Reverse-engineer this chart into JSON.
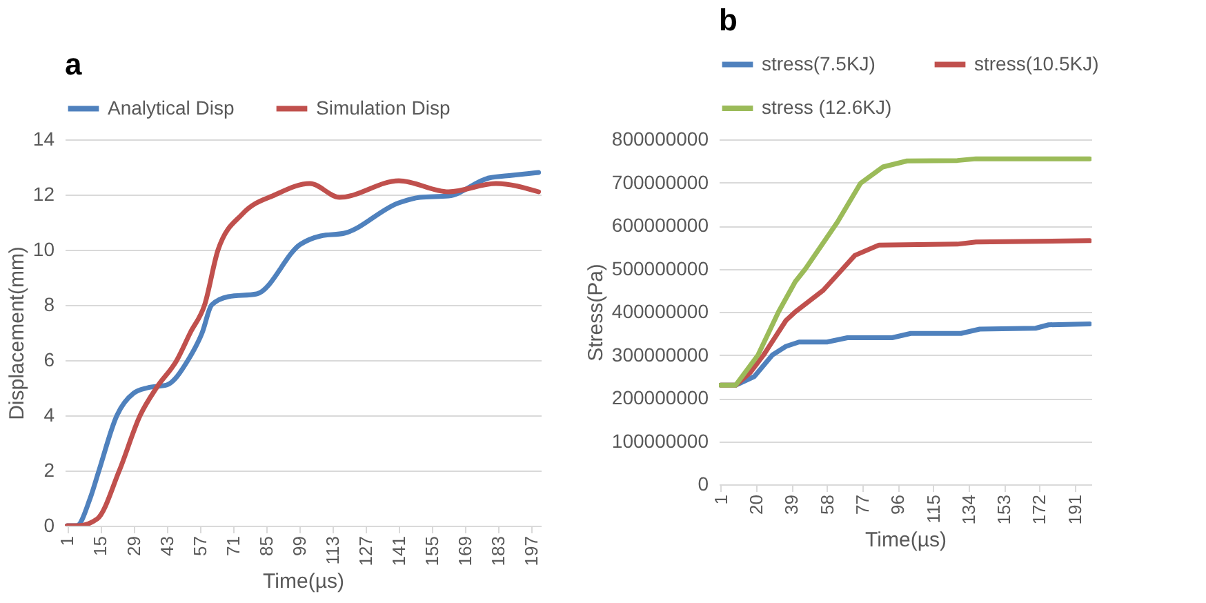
{
  "chart_data": [
    {
      "type": "line",
      "title": "a",
      "xlabel": "Time(µs)",
      "ylabel": "Displacement(mm)",
      "xlim": [
        0,
        201
      ],
      "xticks": [
        1,
        15,
        29,
        43,
        57,
        71,
        85,
        99,
        113,
        127,
        141,
        155,
        169,
        183,
        197
      ],
      "ylim": [
        0,
        14
      ],
      "yticks": [
        0,
        2,
        4,
        6,
        8,
        10,
        12,
        14
      ],
      "grid": "y",
      "legend": "top",
      "series": [
        {
          "name": "Analytical Disp",
          "color": "#4f81bd",
          "x": [
            1,
            5,
            10.7,
            14.4,
            22,
            29,
            35,
            43,
            52,
            58,
            62,
            69,
            81,
            99.5,
            108,
            118,
            141,
            150,
            162,
            179,
            189,
            200
          ],
          "values": [
            0,
            0,
            1,
            2,
            4,
            4.8,
            5,
            5.1,
            6,
            7,
            8,
            8.3,
            8.4,
            10.2,
            10.5,
            10.6,
            11.7,
            11.9,
            11.95,
            12.6,
            12.7,
            12.8
          ]
        },
        {
          "name": "Simulation Disp",
          "color": "#c0504d",
          "x": [
            1,
            5.6,
            13.7,
            23,
            31.8,
            38.7,
            47.3,
            53,
            59,
            64.7,
            75,
            89,
            103.5,
            116,
            141,
            162,
            182,
            200
          ],
          "values": [
            0,
            0,
            0.25,
            2,
            4,
            5,
            6,
            7,
            8,
            10,
            11.3,
            12,
            12.4,
            11.9,
            12.5,
            12.1,
            12.4,
            12.1
          ]
        }
      ]
    },
    {
      "type": "line",
      "title": "b",
      "xlabel": "Time(µs)",
      "ylabel": "Stress(Pa)",
      "xlim": [
        0,
        200
      ],
      "xticks": [
        1,
        20,
        39,
        58,
        77,
        96,
        115,
        134,
        153,
        172,
        191
      ],
      "ylim": [
        0,
        800000000
      ],
      "yticks": [
        0,
        100000000,
        200000000,
        300000000,
        400000000,
        500000000,
        600000000,
        700000000,
        800000000
      ],
      "grid": "y",
      "legend": "top",
      "series": [
        {
          "name": "stress(7.5KJ)",
          "color": "#4f81bd",
          "x": [
            1,
            9,
            19,
            28.7,
            36,
            43,
            58,
            69,
            93,
            103,
            130,
            140,
            170,
            177,
            199
          ],
          "values": [
            230000000,
            230000000,
            250000000,
            300000000,
            320000000,
            330000000,
            330000000,
            340000000,
            340000000,
            350000000,
            350000000,
            360000000,
            362000000,
            370000000,
            372000000
          ]
        },
        {
          "name": "stress(10.5KJ)",
          "color": "#c0504d",
          "x": [
            1,
            9,
            17,
            24,
            36,
            41,
            56,
            66.5,
            73,
            86,
            128,
            138,
            199
          ],
          "values": [
            230000000,
            230000000,
            260000000,
            300000000,
            380000000,
            400000000,
            450000000,
            500000000,
            531000000,
            555000000,
            557000000,
            562000000,
            565000000
          ]
        },
        {
          "name": "stress (12.6KJ)",
          "color": "#9bbb59",
          "x": [
            1,
            9,
            21,
            32,
            41,
            46.5,
            63.6,
            76,
            88,
            101,
            128,
            138,
            199
          ],
          "values": [
            230000000,
            230000000,
            300000000,
            400000000,
            470000000,
            500000000,
            608000000,
            698000000,
            736000000,
            750000000,
            751000000,
            755000000,
            755000000
          ]
        }
      ]
    }
  ]
}
